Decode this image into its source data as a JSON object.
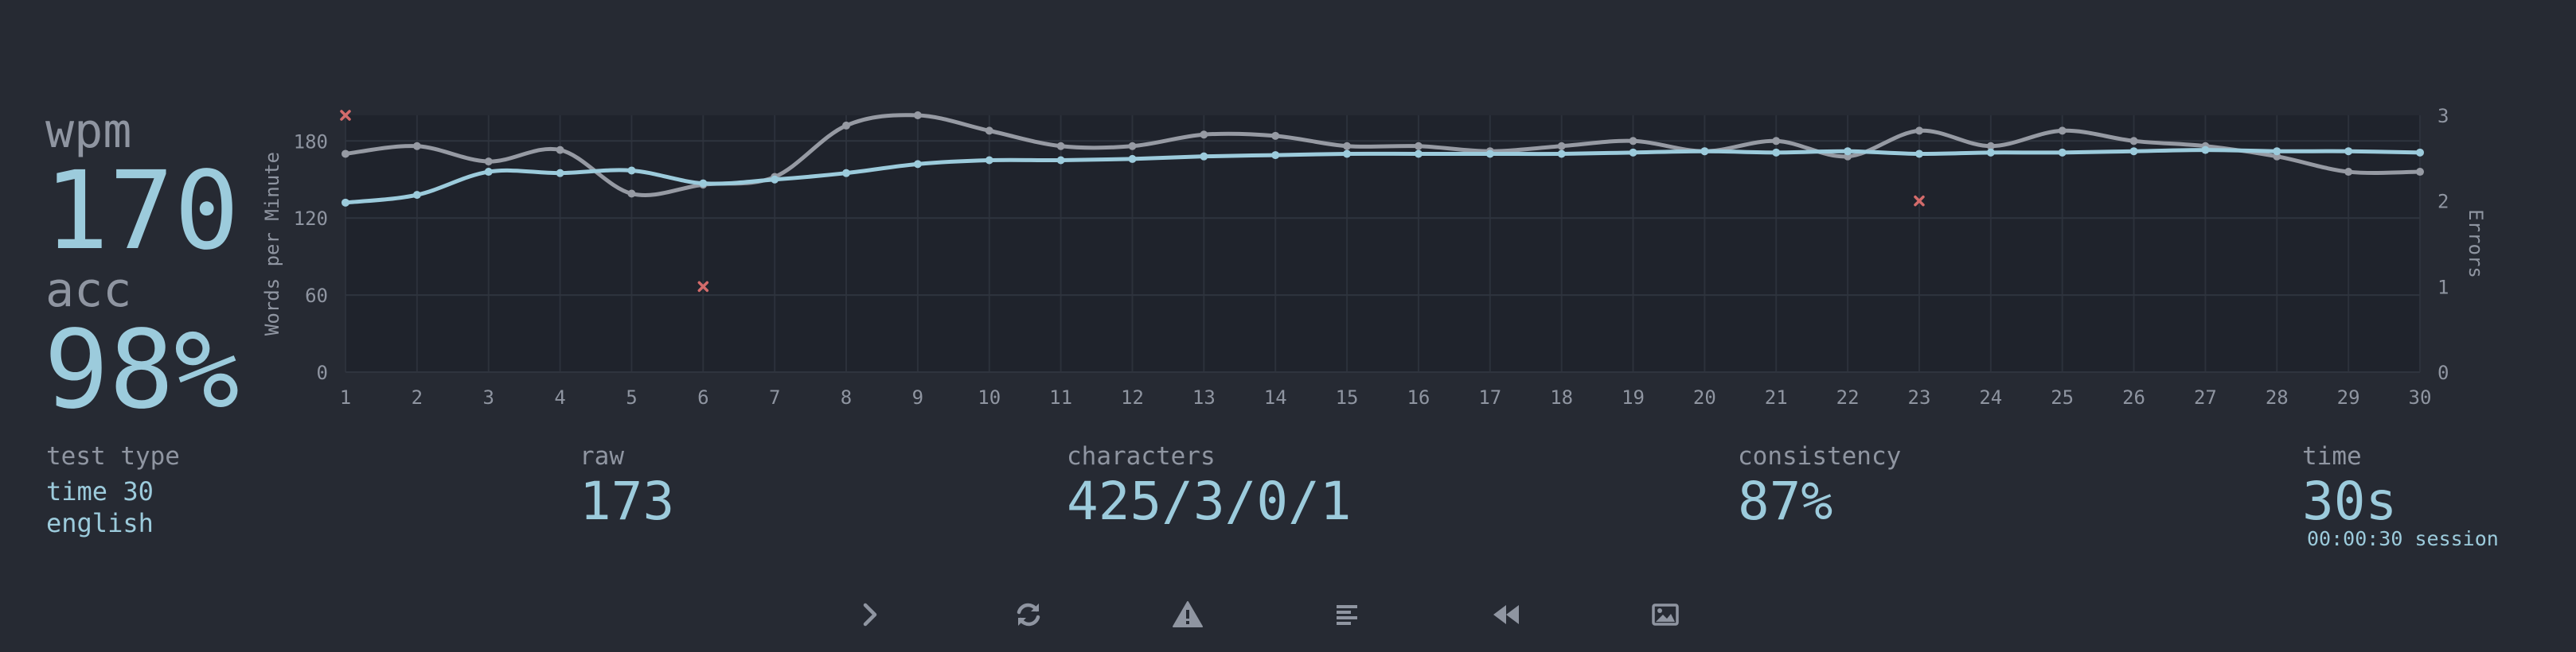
{
  "results": {
    "wpm_label": "wpm",
    "wpm_value": "170",
    "acc_label": "acc",
    "acc_value": "98%"
  },
  "stats": {
    "test_type_label": "test type",
    "test_type_mode": "time 30",
    "test_type_language": "english",
    "raw_label": "raw",
    "raw_value": "173",
    "characters_label": "characters",
    "characters_value": "425/3/0/1",
    "consistency_label": "consistency",
    "consistency_value": "87%",
    "time_label": "time",
    "time_value": "30s",
    "session_time": "00:00:30 session"
  },
  "buttons": [
    {
      "name": "next-test-button",
      "icon": "chevron-right-icon"
    },
    {
      "name": "restart-test-button",
      "icon": "refresh-icon"
    },
    {
      "name": "report-question-button",
      "icon": "warning-icon"
    },
    {
      "name": "show-words-history-button",
      "icon": "align-left-icon"
    },
    {
      "name": "watch-replay-button",
      "icon": "backward-icon"
    },
    {
      "name": "save-screenshot-button",
      "icon": "image-icon"
    }
  ],
  "colors": {
    "background": "#262a33",
    "chart_background": "#1f232c",
    "main": "#9ccbdc",
    "sub": "#8f95a1",
    "raw_line": "#969aa3",
    "error": "#d36b6b"
  },
  "chart_data": {
    "type": "line",
    "x": [
      1,
      2,
      3,
      4,
      5,
      6,
      7,
      8,
      9,
      10,
      11,
      12,
      13,
      14,
      15,
      16,
      17,
      18,
      19,
      20,
      21,
      22,
      23,
      24,
      25,
      26,
      27,
      28,
      29,
      30
    ],
    "series": [
      {
        "name": "wpm",
        "axis": "left",
        "values": [
          132,
          138,
          156,
          155,
          157,
          147,
          150,
          155,
          162,
          165,
          165,
          166,
          168,
          169,
          170,
          170,
          170,
          170,
          171,
          172,
          171,
          172,
          170,
          171,
          171,
          172,
          173,
          172,
          172,
          171
        ]
      },
      {
        "name": "raw",
        "axis": "left",
        "values": [
          170,
          176,
          164,
          173,
          139,
          146,
          152,
          192,
          200,
          188,
          176,
          176,
          185,
          184,
          176,
          176,
          172,
          176,
          180,
          172,
          180,
          168,
          188,
          176,
          188,
          180,
          176,
          168,
          156,
          156
        ]
      },
      {
        "name": "errors",
        "axis": "right",
        "type": "scatter",
        "points": [
          [
            1,
            3
          ],
          [
            6,
            1
          ],
          [
            23,
            2
          ]
        ]
      }
    ],
    "ylabel": "Words per Minute",
    "ylabel_right": "Errors",
    "ylim": [
      0,
      200
    ],
    "yticks": [
      0,
      60,
      120,
      180
    ],
    "ylim_right": [
      0,
      3
    ],
    "yticks_right": [
      0,
      1,
      2,
      3
    ],
    "grid": true
  }
}
